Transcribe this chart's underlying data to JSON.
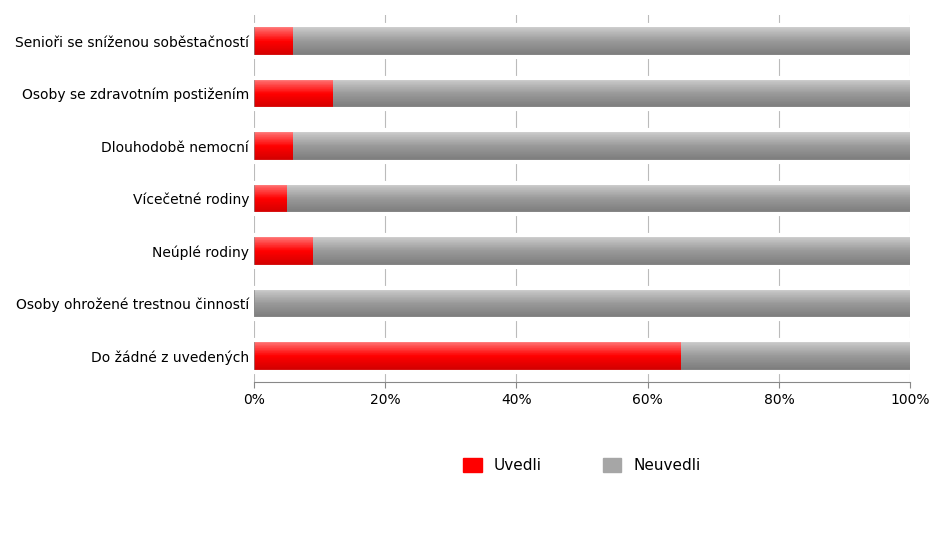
{
  "categories": [
    "Do žádné z uvedených",
    "Osoby ohrožené trestnou činností",
    "Neúplé rodiny",
    "Vícečetné rodiny",
    "Dlouhodobě nemocní",
    "Osoby se zdravotním postižením",
    "Senioři se sníženou soběstačností"
  ],
  "uvedli": [
    65,
    0,
    9,
    5,
    6,
    12,
    6
  ],
  "neuvedli": [
    35,
    100,
    91,
    95,
    94,
    88,
    94
  ],
  "color_uvedli": "#ff0000",
  "color_neuvedli": "#a6a6a6",
  "color_neuvedli_light": "#d4d4d4",
  "color_neuvedli_dark": "#808080",
  "color_uvedli_light": "#ff6666",
  "color_uvedli_dark": "#cc0000",
  "legend_uvedli": "Uvedli",
  "legend_neuvedli": "Neuvedli",
  "xlim": [
    0,
    100
  ],
  "xticks": [
    0,
    20,
    40,
    60,
    80,
    100
  ],
  "xticklabels": [
    "0%",
    "20%",
    "40%",
    "60%",
    "80%",
    "100%"
  ],
  "bar_height": 0.6,
  "background_color": "#ffffff",
  "tick_fontsize": 10,
  "ytick_fontsize": 10
}
